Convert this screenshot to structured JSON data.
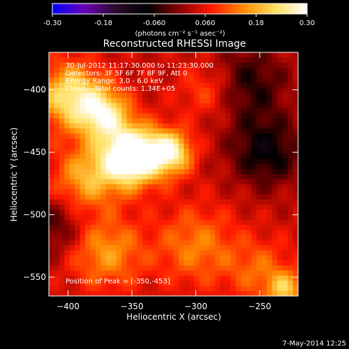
{
  "colorbar": {
    "ticks": [
      "-0.30",
      "-0.18",
      "-0.060",
      "0.060",
      "0.18",
      "0.30"
    ],
    "tick_values": [
      -0.3,
      -0.18,
      -0.06,
      0.06,
      0.18,
      0.3
    ],
    "range": [
      -0.3,
      0.3
    ],
    "units": "(photons cm⁻² s⁻¹ asec⁻²)",
    "colors": [
      "#0000ff",
      "#6a00b8",
      "#2a0a2a",
      "#000000",
      "#8a0000",
      "#ff1a00",
      "#ff8a00",
      "#ffe060",
      "#ffffff"
    ]
  },
  "chart_data": {
    "type": "heatmap",
    "title": "Reconstructed RHESSI Image",
    "xlabel": "Heliocentric X (arcsec)",
    "ylabel": "Heliocentric Y (arcsec)",
    "xlim": [
      -415,
      -220
    ],
    "ylim": [
      -565,
      -370
    ],
    "xticks": [
      -400,
      -350,
      -300,
      -250
    ],
    "yticks": [
      -400,
      -450,
      -500,
      -550
    ],
    "info_lines": [
      "30-Jul-2012 11:17:30.000 to 11:23:30.000",
      "Detectors: 3F 5F 6F 7F 8F 9F, Att 0",
      "Energy Range: 3.0 - 6.0 keV",
      "Clean    Total counts: 1.34E+05"
    ],
    "peak_label": "Position of Peak = [-350,-453]",
    "peak": [
      -350,
      -453
    ],
    "sources": [
      {
        "x": -350,
        "y": -453,
        "amp": 0.34,
        "sigma": 16
      },
      {
        "x": -320,
        "y": -450,
        "amp": 0.22,
        "sigma": 12
      },
      {
        "x": -372,
        "y": -420,
        "amp": 0.2,
        "sigma": 14
      },
      {
        "x": -398,
        "y": -405,
        "amp": 0.2,
        "sigma": 18
      },
      {
        "x": -385,
        "y": -470,
        "amp": 0.14,
        "sigma": 18
      },
      {
        "x": -370,
        "y": -530,
        "amp": 0.12,
        "sigma": 20
      },
      {
        "x": -300,
        "y": -525,
        "amp": 0.1,
        "sigma": 22
      },
      {
        "x": -250,
        "y": -545,
        "amp": 0.08,
        "sigma": 18
      },
      {
        "x": -230,
        "y": -560,
        "amp": 0.14,
        "sigma": 10
      },
      {
        "x": -290,
        "y": -400,
        "amp": 0.08,
        "sigma": 16
      },
      {
        "x": -260,
        "y": -395,
        "amp": -0.1,
        "sigma": 22
      },
      {
        "x": -245,
        "y": -450,
        "amp": -0.12,
        "sigma": 20
      },
      {
        "x": -410,
        "y": -510,
        "amp": -0.08,
        "sigma": 16
      }
    ]
  },
  "timestamp": "7-May-2014 12:25"
}
